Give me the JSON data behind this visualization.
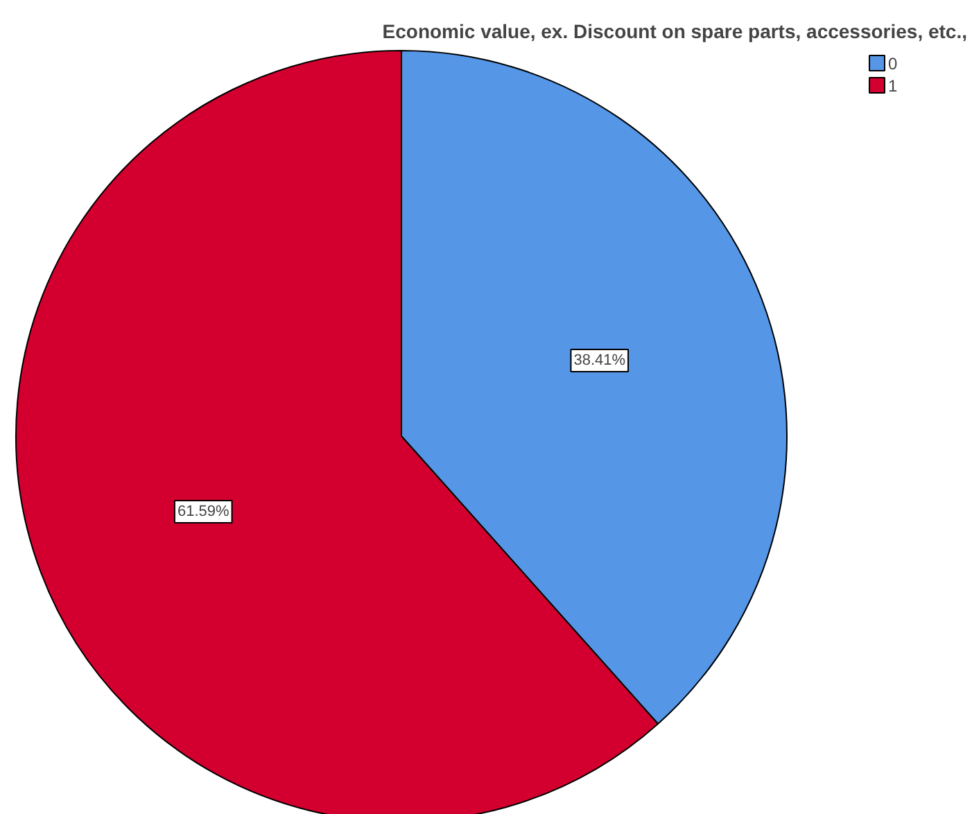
{
  "chart_data": {
    "type": "pie",
    "title": "Economic value, ex. Discount on spare parts, accessories, etc.,",
    "categories": [
      "0",
      "1"
    ],
    "values": [
      38.41,
      61.59
    ],
    "colors": [
      "#5596e6",
      "#d3002f"
    ],
    "value_labels": [
      "38.41%",
      "61.59%"
    ],
    "legend": "top right"
  }
}
